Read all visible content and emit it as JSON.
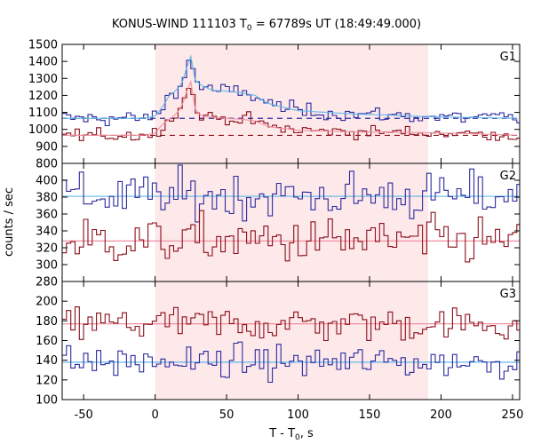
{
  "chart_data": {
    "type": "line",
    "title": "KONUS-WIND 111103 T",
    "title_sub": "0",
    "title_rest": " = 67789s UT (18:49:49.000)",
    "xlabel": "T - T",
    "xlabel_sub": "0",
    "xlabel_rest": ", s",
    "ylabel": "counts / sec",
    "xlim": [
      -65,
      255
    ],
    "x_ticks": [
      -50,
      0,
      50,
      100,
      150,
      200,
      250
    ],
    "highlight_interval": [
      0,
      191
    ],
    "grid": false,
    "colors": {
      "blue": "#2b2b9e",
      "blue_light": "#60b8e8",
      "red": "#8b0f1a",
      "red_light": "#f08fa0",
      "shade": "#fde8ea"
    },
    "panels": [
      {
        "label": "G1",
        "ylim": [
          800,
          1500
        ],
        "y_ticks": [
          800,
          900,
          1000,
          1100,
          1200,
          1300,
          1400,
          1500
        ],
        "background_levels": {
          "blue": 1065,
          "red": 965
        },
        "series": [
          {
            "color_key": "blue",
            "binning": "step",
            "x": [
              -65,
              -10,
              0,
              5,
              10,
              15,
              20,
              22,
              25,
              28,
              32,
              40,
              50,
              60,
              70,
              75,
              80,
              90,
              100,
              120,
              140,
              160,
              190,
              220,
              255
            ],
            "values": [
              1065,
              1065,
              1075,
              1130,
              1200,
              1230,
              1290,
              1360,
              1430,
              1290,
              1260,
              1230,
              1225,
              1215,
              1200,
              1170,
              1150,
              1130,
              1110,
              1100,
              1090,
              1085,
              1075,
              1070,
              1065
            ]
          },
          {
            "color_key": "red",
            "binning": "step",
            "x": [
              -65,
              -10,
              0,
              5,
              10,
              15,
              20,
              22,
              25,
              28,
              32,
              40,
              50,
              60,
              70,
              75,
              80,
              90,
              100,
              120,
              140,
              160,
              190,
              220,
              255
            ],
            "values": [
              965,
              965,
              975,
              1030,
              1060,
              1090,
              1160,
              1220,
              1280,
              1120,
              1080,
              1070,
              1065,
              1060,
              1050,
              1030,
              1015,
              1005,
              995,
              990,
              985,
              985,
              980,
              975,
              965
            ]
          }
        ]
      },
      {
        "label": "G2",
        "ylim": [
          280,
          420
        ],
        "y_ticks": [
          280,
          300,
          320,
          340,
          360,
          380,
          400
        ],
        "background_levels": {
          "blue": 381,
          "red": 328
        },
        "series": [
          {
            "color_key": "blue",
            "binning": "step",
            "x": [
              -65,
              255
            ],
            "values": [
              381,
              381
            ]
          },
          {
            "color_key": "red",
            "binning": "step",
            "x": [
              -65,
              255
            ],
            "values": [
              328,
              328
            ]
          }
        ]
      },
      {
        "label": "G3",
        "ylim": [
          100,
          220
        ],
        "y_ticks": [
          100,
          120,
          140,
          160,
          180,
          200
        ],
        "background_levels": {
          "blue": 138,
          "red": 177
        },
        "series": [
          {
            "color_key": "red",
            "binning": "step",
            "x": [
              -65,
              255
            ],
            "values": [
              177,
              177
            ]
          },
          {
            "color_key": "blue",
            "binning": "step",
            "x": [
              -65,
              255
            ],
            "values": [
              138,
              138
            ]
          }
        ]
      }
    ]
  }
}
